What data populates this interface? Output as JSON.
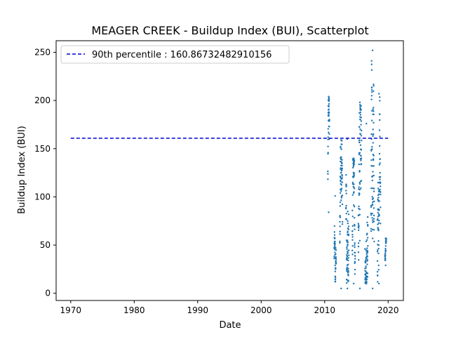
{
  "chart_data": {
    "type": "scatter",
    "title": "MEAGER CREEK - Buildup Index (BUI), Scatterplot",
    "xlabel": "Date",
    "ylabel": "Buildup Index (BUI)",
    "xlim": [
      1967.7,
      2022.4
    ],
    "ylim": [
      -7.5,
      262
    ],
    "x_ticks": [
      1970,
      1980,
      1990,
      2000,
      2010,
      2020
    ],
    "y_ticks": [
      0,
      50,
      100,
      150,
      200,
      250
    ],
    "grid": false,
    "legend_position": "top-left",
    "reference_line": {
      "label": "90th percentile : 160.86732482910156",
      "y": 160.86732482910156,
      "x_range": [
        1970,
        2020
      ],
      "color": "#0000cc",
      "style": "dashed"
    },
    "series": [
      {
        "color": "#1f77b4",
        "seasons": [
          {
            "year": 2010,
            "start": 2010.5,
            "end": 2010.75,
            "min": 84,
            "max": 204
          },
          {
            "year": 2011,
            "start": 2011.5,
            "end": 2011.8,
            "min": 12,
            "max": 101
          },
          {
            "year": 2012,
            "start": 2012.38,
            "end": 2012.8,
            "min": 5,
            "max": 159
          },
          {
            "year": 2013,
            "start": 2013.35,
            "end": 2013.8,
            "min": 5,
            "max": 160
          },
          {
            "year": 2014,
            "start": 2014.35,
            "end": 2014.8,
            "min": 10,
            "max": 140
          },
          {
            "year": 2015,
            "start": 2015.3,
            "end": 2015.8,
            "min": 5,
            "max": 198
          },
          {
            "year": 2016,
            "start": 2016.35,
            "end": 2016.8,
            "min": 10,
            "max": 176
          },
          {
            "year": 2017,
            "start": 2017.3,
            "end": 2017.8,
            "min": 5,
            "max": 252
          },
          {
            "year": 2018,
            "start": 2018.3,
            "end": 2018.8,
            "min": 10,
            "max": 207
          },
          {
            "year": 2019,
            "start": 2019.5,
            "end": 2019.7,
            "min": 29,
            "max": 57
          }
        ]
      }
    ]
  }
}
